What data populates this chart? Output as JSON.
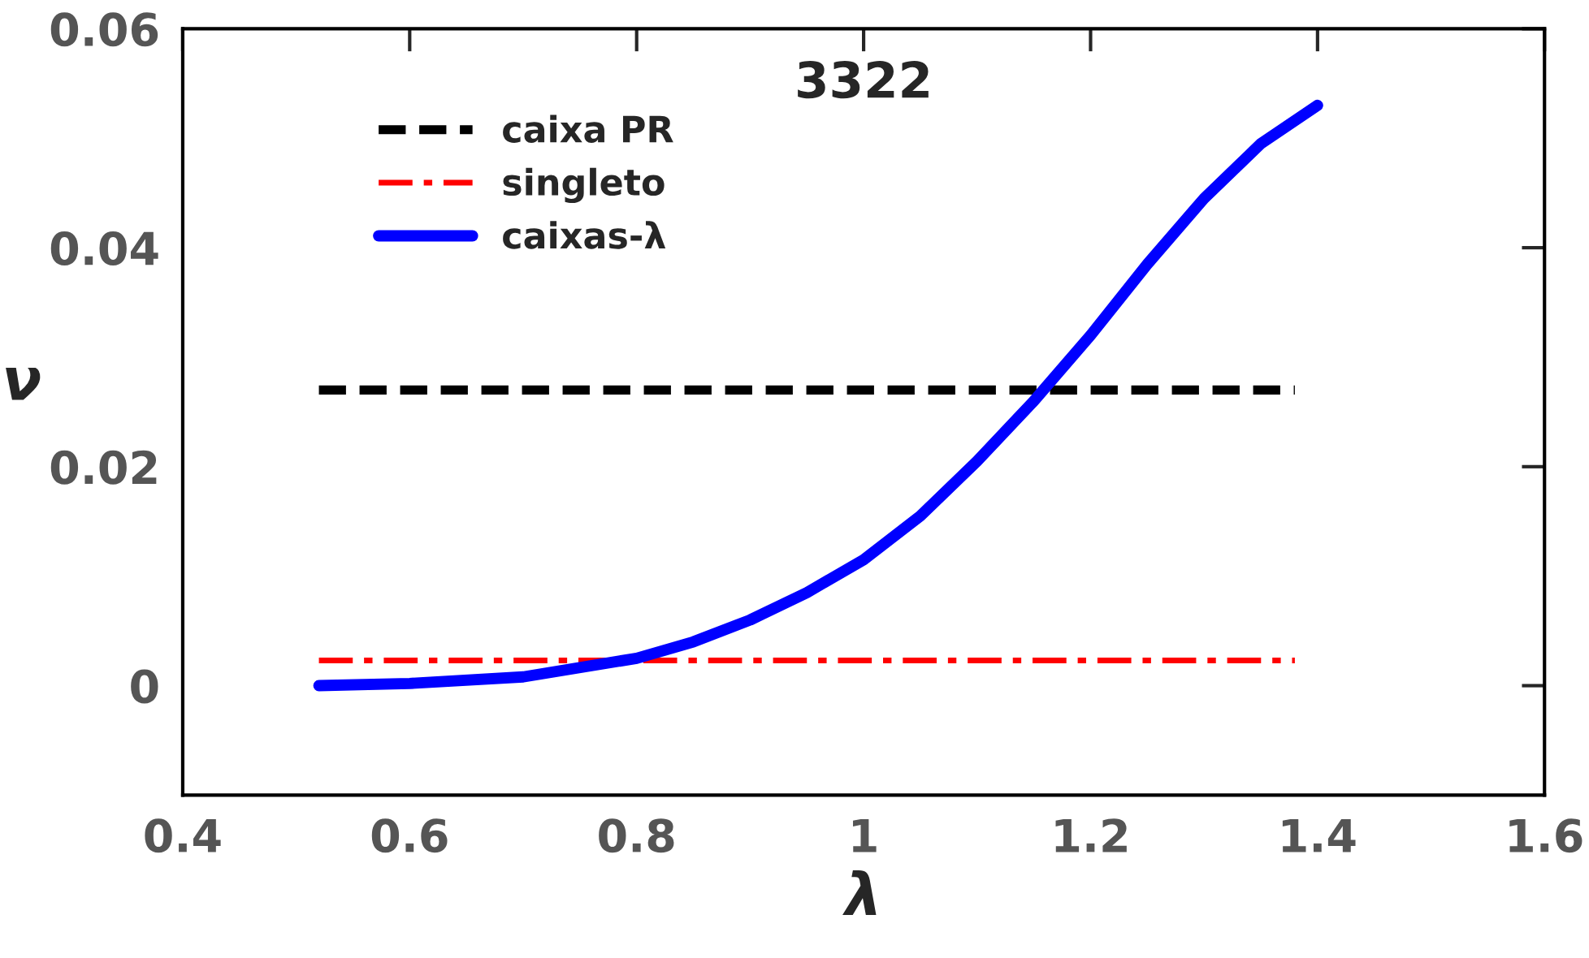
{
  "chart_data": {
    "type": "line",
    "title": "3322",
    "xlabel": "λ",
    "ylabel": "ν",
    "xlim": [
      0.4,
      1.6
    ],
    "xticks": [
      0.4,
      0.6,
      0.8,
      1,
      1.2,
      1.4,
      1.6
    ],
    "ylim": [
      -0.01,
      0.06
    ],
    "yticks": [
      0,
      0.02,
      0.04,
      0.06
    ],
    "grid": false,
    "legend": "top left",
    "marker": "none",
    "series": [
      {
        "name": "caixa PR",
        "color": "#000000",
        "line_style": "dashed",
        "x": [
          0.52,
          1.38
        ],
        "values": [
          0.027,
          0.027
        ]
      },
      {
        "name": "singleto",
        "color": "#ff0000",
        "line_style": "dashdot",
        "x": [
          0.52,
          1.38
        ],
        "values": [
          0.0023,
          0.0023
        ]
      },
      {
        "name": "caixas-λ",
        "color": "#0000ff",
        "line_style": "solid",
        "x": [
          0.52,
          0.6,
          0.7,
          0.8,
          0.85,
          0.9,
          0.95,
          1.0,
          1.05,
          1.1,
          1.15,
          1.2,
          1.25,
          1.3,
          1.35,
          1.4
        ],
        "values": [
          0,
          0.0002,
          0.0008,
          0.0025,
          0.004,
          0.006,
          0.0085,
          0.0115,
          0.0155,
          0.0205,
          0.026,
          0.032,
          0.0385,
          0.0445,
          0.0495,
          0.053
        ]
      }
    ]
  }
}
